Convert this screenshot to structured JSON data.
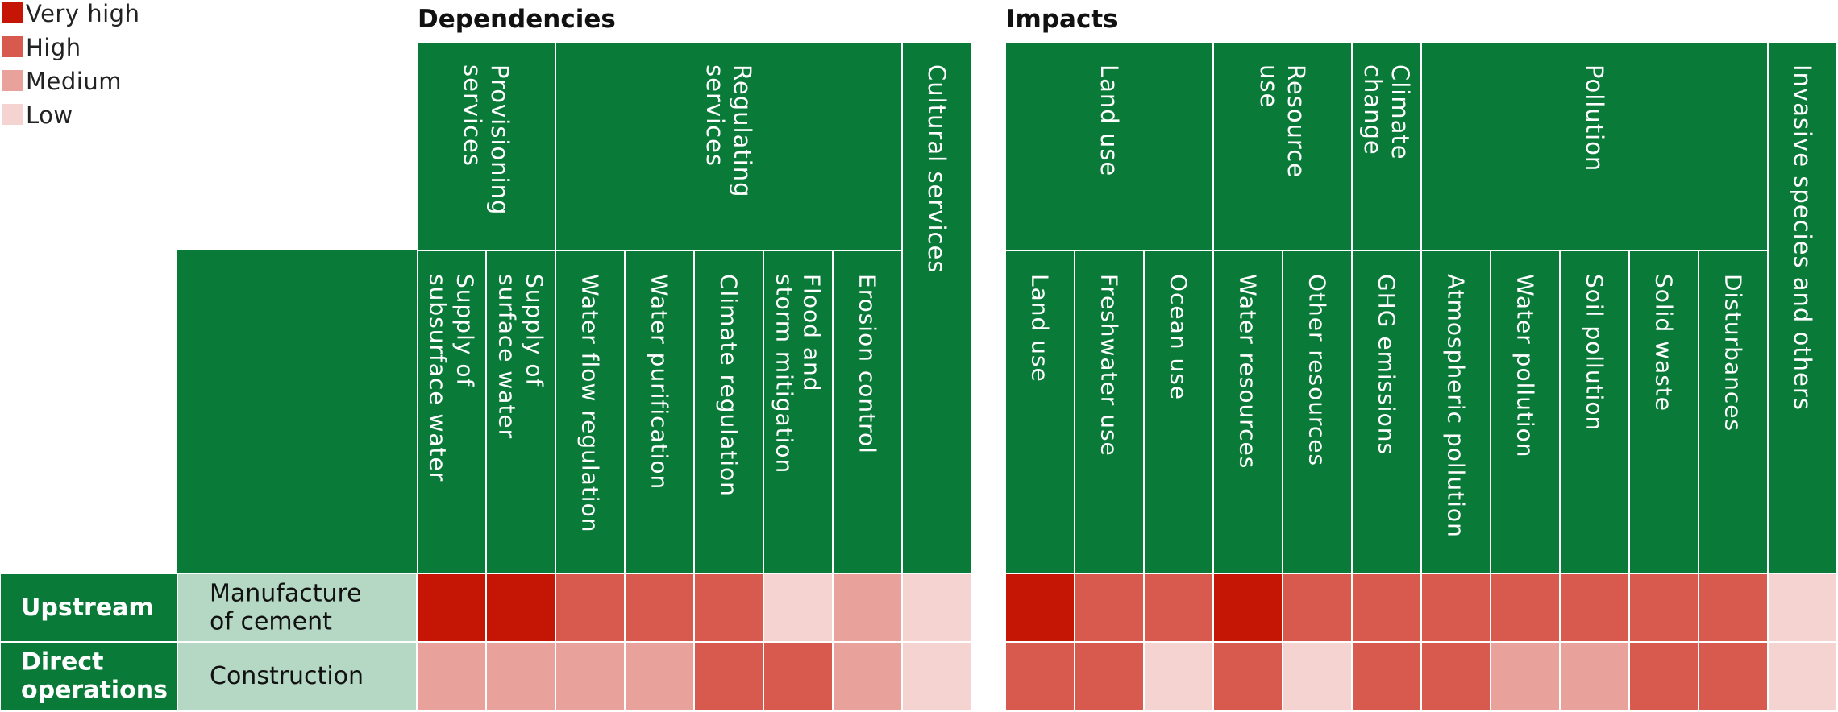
{
  "chart_data": {
    "type": "heatmap",
    "legend": {
      "placement": "top-left",
      "items": [
        {
          "label": "Very high",
          "color": "#c51505"
        },
        {
          "label": "High",
          "color": "#d8594e"
        },
        {
          "label": "Medium",
          "color": "#e8a19b"
        },
        {
          "label": "Low",
          "color": "#f4d3d0"
        }
      ]
    },
    "sections": [
      {
        "title": "Dependencies",
        "groups": [
          {
            "label": [
              "Provisioning",
              "services"
            ],
            "span": 2
          },
          {
            "label": [
              "Regulating",
              "services"
            ],
            "span": 5
          },
          {
            "label": [
              "Cultural services"
            ],
            "span": 1,
            "full": true
          }
        ],
        "columns": [
          {
            "label": [
              "Supply of",
              "subsurface water"
            ]
          },
          {
            "label": [
              "Supply of",
              "surface water"
            ]
          },
          {
            "label": [
              "Water flow regulation"
            ]
          },
          {
            "label": [
              "Water purification"
            ]
          },
          {
            "label": [
              "Climate regulation"
            ]
          },
          {
            "label": [
              "Flood and",
              "storm mitigation"
            ]
          },
          {
            "label": [
              "Erosion control"
            ]
          }
        ],
        "values": [
          [
            "Very high",
            "Very high",
            "High",
            "High",
            "High",
            "Low",
            "Medium",
            "Low"
          ],
          [
            "Medium",
            "Medium",
            "Medium",
            "Medium",
            "High",
            "High",
            "Medium",
            "Low"
          ]
        ]
      },
      {
        "title": "Impacts",
        "groups": [
          {
            "label": [
              "Land use"
            ],
            "span": 3
          },
          {
            "label": [
              "Resource",
              "use"
            ],
            "span": 2
          },
          {
            "label": [
              "Climate",
              "change"
            ],
            "span": 1
          },
          {
            "label": [
              "Pollution"
            ],
            "span": 5
          },
          {
            "label": [
              "Invasive species and others"
            ],
            "span": 1,
            "full": true
          }
        ],
        "columns": [
          {
            "label": [
              "Land use"
            ]
          },
          {
            "label": [
              "Freshwater use"
            ]
          },
          {
            "label": [
              "Ocean use"
            ]
          },
          {
            "label": [
              "Water resources"
            ]
          },
          {
            "label": [
              "Other resources"
            ]
          },
          {
            "label": [
              "GHG emissions"
            ]
          },
          {
            "label": [
              "Atmospheric pollution"
            ]
          },
          {
            "label": [
              "Water pollution"
            ]
          },
          {
            "label": [
              "Soil pollution"
            ]
          },
          {
            "label": [
              "Solid waste"
            ]
          },
          {
            "label": [
              "Disturbances"
            ]
          }
        ],
        "values": [
          [
            "Very high",
            "High",
            "High",
            "Very high",
            "High",
            "High",
            "High",
            "High",
            "High",
            "High",
            "High",
            "Low"
          ],
          [
            "High",
            "High",
            "Low",
            "High",
            "Low",
            "High",
            "High",
            "Medium",
            "Medium",
            "High",
            "High",
            "Low"
          ]
        ]
      }
    ],
    "rows": [
      {
        "stage": [
          "Upstream"
        ],
        "activity": [
          "Manufacture",
          "of cement"
        ]
      },
      {
        "stage": [
          "Direct",
          "operations"
        ],
        "activity": [
          "Construction"
        ]
      }
    ],
    "colors": {
      "header_green": "#0a7a38",
      "activity_bg": "#b5d8c4",
      "divider": "#ffffff"
    }
  }
}
